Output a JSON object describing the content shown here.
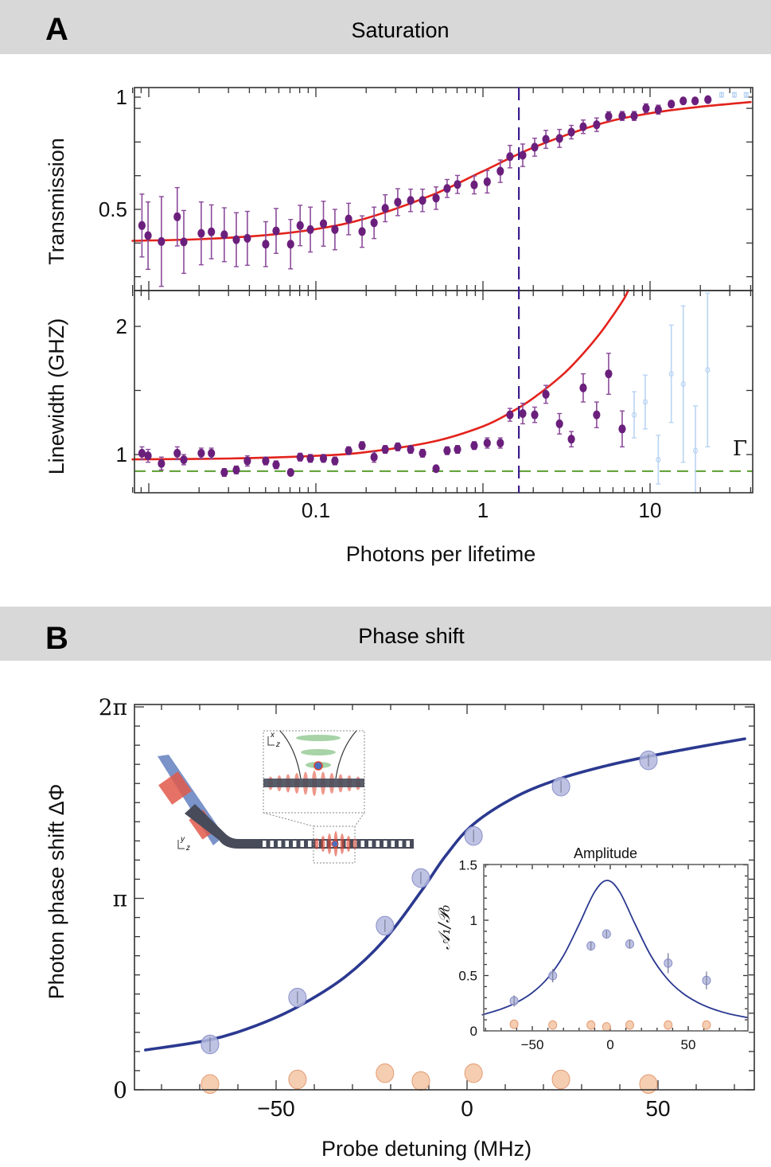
{
  "panels": {
    "a": {
      "letter": "A",
      "title": "Saturation"
    },
    "b": {
      "letter": "B",
      "title": "Phase shift"
    }
  },
  "illustration": {
    "labels": [
      "x",
      "z",
      "y",
      "z"
    ]
  },
  "colors": {
    "header_bg": "#d8d8d8",
    "data_purple": "#6b1f7c",
    "faded_blue": "#b9d4f3",
    "fit_red": "#e3231c",
    "vline_purple": "#3b1c8c",
    "gamma_green": "#5a9e2f",
    "phase_blue": "#2b3990",
    "marker_blue": "#b4b8de",
    "marker_orange": "#f3c6a4"
  },
  "chart_data": [
    {
      "type": "scatter",
      "xscale": "log",
      "xlim": [
        0.008,
        40
      ],
      "ylim": [
        0.14,
        1.04
      ],
      "xlabel": "",
      "ylabel": "Transmission",
      "grid": false,
      "xticks": {
        "values": [
          0.1,
          1,
          10
        ],
        "labels": []
      },
      "yticks": {
        "values": [
          0.5,
          1
        ],
        "labels": [
          "0.5",
          "1"
        ]
      },
      "series": [
        {
          "x": [
            0.0091,
            0.0099,
            0.0119,
            0.0148,
            0.0162,
            0.0206,
            0.0237,
            0.0283,
            0.0334,
            0.0389,
            0.0501,
            0.0578,
            0.0706,
            0.0805,
            0.0927,
            0.111,
            0.13,
            0.157,
            0.189,
            0.223,
            0.26,
            0.309,
            0.369,
            0.435,
            0.524,
            0.61,
            0.704,
            0.886,
            1.06,
            1.27,
            1.45,
            1.73,
            2.04,
            2.38,
            2.87,
            3.38,
            3.98,
            4.79,
            5.65,
            6.81,
            8.03,
            9.46,
            11.2,
            13.4,
            15.8,
            18.6,
            22.2
          ],
          "y": [
            0.428,
            0.383,
            0.357,
            0.467,
            0.355,
            0.393,
            0.4,
            0.387,
            0.365,
            0.371,
            0.345,
            0.404,
            0.345,
            0.428,
            0.41,
            0.436,
            0.41,
            0.457,
            0.401,
            0.44,
            0.505,
            0.532,
            0.54,
            0.54,
            0.55,
            0.593,
            0.611,
            0.609,
            0.623,
            0.67,
            0.735,
            0.741,
            0.777,
            0.812,
            0.816,
            0.844,
            0.868,
            0.877,
            0.915,
            0.916,
            0.916,
            0.95,
            0.944,
            0.969,
            0.983,
            0.983,
            0.989
          ],
          "err": [
            0.14,
            0.15,
            0.2,
            0.13,
            0.14,
            0.14,
            0.12,
            0.12,
            0.12,
            0.12,
            0.1,
            0.1,
            0.11,
            0.09,
            0.1,
            0.1,
            0.09,
            0.07,
            0.07,
            0.07,
            0.06,
            0.06,
            0.05,
            0.05,
            0.05,
            0.04,
            0.04,
            0.04,
            0.05,
            0.05,
            0.05,
            0.05,
            0.04,
            0.04,
            0.04,
            0.03,
            0.03,
            0.03,
            0.02,
            0.02,
            0.02,
            0.02,
            0.02,
            0.01,
            0.01,
            0.01,
            0.01
          ],
          "color": "#6b1f7c",
          "faded": false
        },
        {
          "x": [
            26.8,
            32.0,
            37.6
          ],
          "y": [
            1.01,
            1.01,
            1.01
          ],
          "err": [
            0.01,
            0.01,
            0.01
          ],
          "color": "#b9d4f3",
          "faded": true
        }
      ],
      "fit": {
        "x": [
          0.008,
          0.02,
          0.05,
          0.1,
          0.2,
          0.5,
          1,
          2,
          5,
          10,
          20,
          40
        ],
        "y": [
          0.36,
          0.367,
          0.385,
          0.412,
          0.46,
          0.565,
          0.67,
          0.775,
          0.88,
          0.928,
          0.957,
          0.978
        ],
        "color": "#e3231c"
      },
      "vline": {
        "x": 1.64,
        "color": "#3b1c8c"
      }
    },
    {
      "type": "scatter",
      "xscale": "log",
      "xlim": [
        0.008,
        40
      ],
      "ylim": [
        0.7,
        2.28
      ],
      "xlabel": "Photons per lifetime",
      "ylabel": "Linewidth (GHZ)",
      "grid": false,
      "xticks": {
        "values": [
          0.1,
          1,
          10
        ],
        "labels": [
          "0.1",
          "1",
          "10"
        ]
      },
      "yticks": {
        "values": [
          1,
          2
        ],
        "labels": [
          "1",
          "2"
        ]
      },
      "series": [
        {
          "x": [
            0.0091,
            0.0099,
            0.0119,
            0.0148,
            0.0162,
            0.0206,
            0.0237,
            0.0283,
            0.0334,
            0.0389,
            0.0501,
            0.0578,
            0.0706,
            0.0805,
            0.0927,
            0.111,
            0.13,
            0.157,
            0.189,
            0.223,
            0.26,
            0.309,
            0.369,
            0.435,
            0.524,
            0.61,
            0.704,
            0.886,
            1.06,
            1.27,
            1.45,
            1.73,
            2.04,
            2.38,
            2.87,
            3.38,
            3.98,
            4.79,
            5.65,
            6.81
          ],
          "y": [
            1.01,
            0.99,
            0.93,
            1.01,
            0.96,
            1.01,
            1.01,
            0.86,
            0.88,
            0.95,
            0.95,
            0.92,
            0.86,
            0.98,
            0.97,
            0.97,
            0.95,
            1.03,
            1.07,
            0.98,
            1.04,
            1.06,
            1.04,
            1.01,
            0.89,
            1.03,
            1.04,
            1.07,
            1.09,
            1.09,
            1.31,
            1.32,
            1.31,
            1.47,
            1.24,
            1.12,
            1.52,
            1.31,
            1.63,
            1.2
          ],
          "err": [
            0.05,
            0.05,
            0.05,
            0.05,
            0.04,
            0.04,
            0.04,
            0.03,
            0.03,
            0.04,
            0.03,
            0.03,
            0.02,
            0.03,
            0.03,
            0.03,
            0.03,
            0.03,
            0.03,
            0.04,
            0.03,
            0.03,
            0.03,
            0.03,
            0.02,
            0.03,
            0.03,
            0.03,
            0.04,
            0.04,
            0.05,
            0.08,
            0.06,
            0.07,
            0.08,
            0.06,
            0.11,
            0.1,
            0.16,
            0.14
          ],
          "color": "#6b1f7c",
          "faded": false
        },
        {
          "x": [
            8.03,
            9.36,
            11.2,
            13.4,
            15.8,
            18.7,
            22.1
          ],
          "y": [
            1.31,
            1.41,
            0.96,
            1.63,
            1.55,
            1.03,
            1.66
          ],
          "err": [
            0.18,
            0.21,
            0.19,
            0.38,
            0.61,
            0.35,
            0.6
          ],
          "color": "#b9d4f3",
          "faded": true
        }
      ],
      "fit": {
        "x": [
          0.008,
          0.03,
          0.1,
          0.2,
          0.5,
          1,
          1.5,
          2,
          3,
          4,
          5,
          6,
          7,
          7.4
        ],
        "y": [
          0.962,
          0.969,
          0.99,
          1.019,
          1.1,
          1.22,
          1.336,
          1.44,
          1.623,
          1.791,
          1.943,
          2.086,
          2.218,
          2.28
        ],
        "color": "#e3231c"
      },
      "vline": {
        "x": 1.64,
        "color": "#3b1c8c"
      },
      "hline": {
        "y": 0.87,
        "color": "#5a9e2f",
        "label": "Γ"
      }
    },
    {
      "type": "scatter",
      "xscale": "linear",
      "xlim": [
        -87,
        75
      ],
      "ylim": [
        0,
        6.3
      ],
      "xlabel": "Probe detuning (MHz)",
      "ylabel": "Photon phase shift ΔΦ",
      "grid": false,
      "xticks": {
        "values": [
          -50,
          0,
          50
        ],
        "labels": [
          "−50",
          "0",
          "50"
        ]
      },
      "yticks": {
        "values": [
          0,
          3.1416,
          6.2832
        ],
        "labels": [
          "0",
          "π",
          "2π"
        ]
      },
      "series": [
        {
          "x": [
            -67.3,
            -44.4,
            -21.5,
            -12.1,
            1.7,
            24.6,
            47.5
          ],
          "y": [
            0.745,
            1.514,
            2.692,
            3.475,
            4.166,
            4.976,
            5.407
          ],
          "err": [
            0.12,
            0.1,
            0.1,
            0.1,
            0.1,
            0.1,
            0.1
          ],
          "color": "#b4b8de",
          "faded": false
        },
        {
          "x": [
            -67.3,
            -44.4,
            -21.5,
            -12.1,
            1.7,
            24.6,
            47.5
          ],
          "y": [
            0.094,
            0.17,
            0.273,
            0.144,
            0.273,
            0.17,
            0.094
          ],
          "err": [],
          "color": "#f3c6a4",
          "faded": false
        }
      ],
      "fit": {
        "x": [
          -84.2,
          -67.3,
          -55,
          -44.4,
          -32,
          -21.5,
          -12.1,
          -5.6,
          1.7,
          13.1,
          24.6,
          36,
          47.5,
          60,
          72.7
        ],
        "y": [
          0.653,
          0.82,
          1.06,
          1.36,
          1.85,
          2.47,
          3.25,
          3.84,
          4.36,
          4.82,
          5.11,
          5.31,
          5.47,
          5.62,
          5.76
        ],
        "color": "#2b3990"
      }
    },
    {
      "type": "scatter",
      "xscale": "linear",
      "title": "Amplitude",
      "xlim": [
        -82,
        88
      ],
      "ylim": [
        0,
        1.5
      ],
      "xlabel": "",
      "ylabel": "𝒜₁/𝒫₀",
      "grid": false,
      "xticks": {
        "values": [
          -50,
          0,
          50
        ],
        "labels": [
          "−50",
          "0",
          "50"
        ]
      },
      "yticks": {
        "values": [
          0,
          0.5,
          1,
          1.5
        ],
        "labels": [
          "0",
          "0.5",
          "1",
          "1.5"
        ]
      },
      "series": [
        {
          "x": [
            -61.7,
            -36.9,
            -12.4,
            -2.4,
            12.5,
            37.1,
            61.7
          ],
          "y": [
            0.271,
            0.499,
            0.768,
            0.876,
            0.785,
            0.612,
            0.456
          ],
          "err": [
            0.05,
            0.06,
            0.04,
            0.03,
            0.04,
            0.09,
            0.08
          ],
          "color": "#b4b8de",
          "faded": false
        },
        {
          "x": [
            -61.7,
            -36.9,
            -12.4,
            -2.4,
            12.5,
            37.1,
            61.7
          ],
          "y": [
            0.06,
            0.053,
            0.053,
            0.036,
            0.053,
            0.053,
            0.053
          ],
          "err": [],
          "color": "#f3c6a4",
          "faded": false
        }
      ],
      "fit": {
        "x": [
          -82,
          -70,
          -60,
          -50,
          -40,
          -30,
          -20,
          -10,
          -2,
          6,
          16,
          26,
          36,
          46,
          56,
          66,
          76,
          88
        ],
        "y": [
          0.145,
          0.197,
          0.257,
          0.345,
          0.479,
          0.68,
          0.962,
          1.257,
          1.36,
          1.257,
          0.962,
          0.68,
          0.479,
          0.345,
          0.257,
          0.197,
          0.155,
          0.12
        ],
        "color": "#2b3990"
      }
    }
  ]
}
